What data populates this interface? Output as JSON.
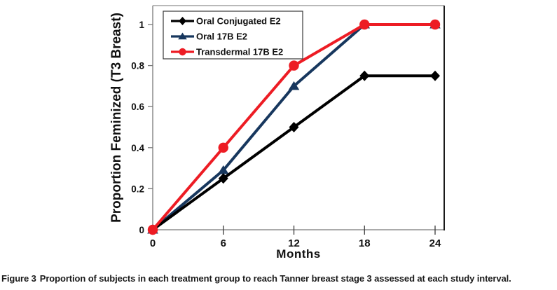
{
  "figure": {
    "caption_label": "Figure 3",
    "caption_text": "Proportion of subjects in each treatment group to reach Tanner breast stage 3 assessed at each study interval."
  },
  "chart_data": {
    "type": "line",
    "title": "",
    "xlabel": "Months",
    "ylabel": "Proportion Feminized (T3 Breast)",
    "x": [
      0,
      6,
      12,
      18,
      24
    ],
    "x_tick_labels": [
      "0",
      "6",
      "12",
      "18",
      "24"
    ],
    "y_ticks": [
      0,
      0.2,
      0.4,
      0.6,
      0.8,
      1
    ],
    "y_tick_labels": [
      "0",
      "0.2",
      "0.4",
      "0.6",
      "0.8",
      "1"
    ],
    "xlim": [
      0,
      24.8
    ],
    "ylim": [
      0,
      1.09
    ],
    "grid": false,
    "legend_position": "top-left-inside",
    "series": [
      {
        "name": "Oral Conjugated E2",
        "color": "#000000",
        "marker": "diamond",
        "values": [
          0,
          0.25,
          0.5,
          0.75,
          0.75
        ]
      },
      {
        "name": "Oral 17B E2",
        "color": "#17375e",
        "marker": "triangle",
        "values": [
          0,
          0.29,
          0.7,
          1,
          1
        ]
      },
      {
        "name": "Transdermal 17B E2",
        "color": "#ed1c24",
        "marker": "circle",
        "values": [
          0,
          0.4,
          0.8,
          1,
          1
        ]
      }
    ],
    "draw_order": [
      1,
      0,
      2
    ],
    "colors": {
      "plot_border": "#8f8f8f",
      "plot_border_right": "#1a1a1a",
      "tick": "#3a3a3a",
      "text": "#111111",
      "legend_border": "#3a3a3a"
    }
  }
}
